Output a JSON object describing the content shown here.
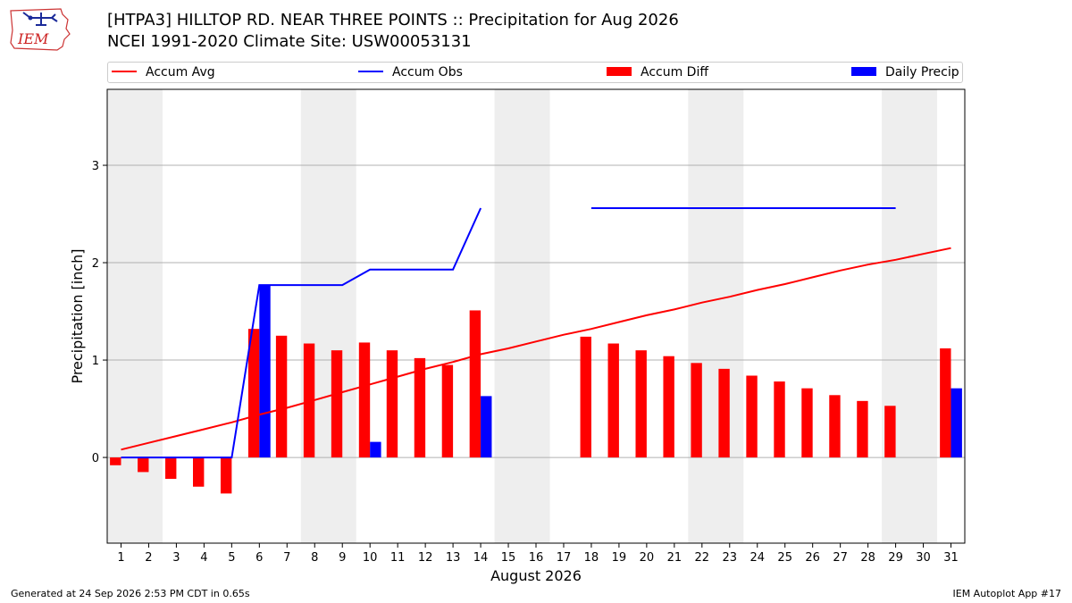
{
  "header": {
    "logo_text": "IEM",
    "title_line1": "[HTPA3] HILLTOP RD. NEAR THREE POINTS :: Precipitation for Aug 2026",
    "title_line2": "NCEI 1991-2020 Climate Site: USW00053131"
  },
  "legend": {
    "items": [
      {
        "label": "Accum Avg",
        "kind": "line",
        "color": "#ff0000"
      },
      {
        "label": "Accum Obs",
        "kind": "line",
        "color": "#0000ff"
      },
      {
        "label": "Accum Diff",
        "kind": "box",
        "color": "#ff0000"
      },
      {
        "label": "Daily Precip",
        "kind": "box",
        "color": "#0000ff"
      }
    ]
  },
  "footer": {
    "left": "Generated at 24 Sep 2026 2:53 PM CDT in 0.65s",
    "right": "IEM Autoplot App #17"
  },
  "chart_data": {
    "type": "bar",
    "xlabel": "August 2026",
    "ylabel": "Precipitation [inch]",
    "x": [
      1,
      2,
      3,
      4,
      5,
      6,
      7,
      8,
      9,
      10,
      11,
      12,
      13,
      14,
      15,
      16,
      17,
      18,
      19,
      20,
      21,
      22,
      23,
      24,
      25,
      26,
      27,
      28,
      29,
      30,
      31
    ],
    "ylim": [
      -0.88,
      3.78
    ],
    "yticks": [
      0,
      1,
      2,
      3
    ],
    "grid": true,
    "legend_position": "top",
    "weekend_shading": [
      [
        1,
        2
      ],
      [
        8,
        9
      ],
      [
        15,
        16
      ],
      [
        22,
        23
      ],
      [
        29,
        30
      ]
    ],
    "series": [
      {
        "name": "Accum Avg",
        "kind": "line",
        "color": "#ff0000",
        "values": [
          0.08,
          0.15,
          0.22,
          0.29,
          0.36,
          0.44,
          0.51,
          0.59,
          0.67,
          0.75,
          0.83,
          0.91,
          0.98,
          1.06,
          1.12,
          1.19,
          1.26,
          1.32,
          1.39,
          1.46,
          1.52,
          1.59,
          1.65,
          1.72,
          1.78,
          1.85,
          1.92,
          1.98,
          2.03,
          2.09,
          2.15
        ]
      },
      {
        "name": "Accum Obs",
        "kind": "line",
        "color": "#0000ff",
        "values": [
          0,
          0,
          0,
          0,
          0,
          1.77,
          1.77,
          1.77,
          1.77,
          1.93,
          1.93,
          1.93,
          1.93,
          2.56,
          null,
          null,
          null,
          2.56,
          2.56,
          2.56,
          2.56,
          2.56,
          2.56,
          2.56,
          2.56,
          2.56,
          2.56,
          2.56,
          2.56,
          null,
          null
        ]
      },
      {
        "name": "Accum Diff",
        "kind": "bar",
        "color": "#ff0000",
        "values": [
          -0.08,
          -0.15,
          -0.22,
          -0.3,
          -0.37,
          1.32,
          1.25,
          1.17,
          1.1,
          1.18,
          1.1,
          1.02,
          0.95,
          1.51,
          null,
          null,
          null,
          1.24,
          1.17,
          1.1,
          1.04,
          0.97,
          0.91,
          0.84,
          0.78,
          0.71,
          0.64,
          0.58,
          0.53,
          null,
          1.12
        ]
      },
      {
        "name": "Daily Precip",
        "kind": "bar",
        "color": "#0000ff",
        "values": [
          0,
          0,
          0,
          0,
          0,
          1.77,
          0,
          0,
          0,
          0.16,
          0,
          0,
          0,
          0.63,
          null,
          null,
          null,
          0,
          0,
          0,
          0,
          0,
          0,
          0,
          0,
          0,
          0,
          0,
          0,
          null,
          0.71
        ]
      }
    ]
  }
}
